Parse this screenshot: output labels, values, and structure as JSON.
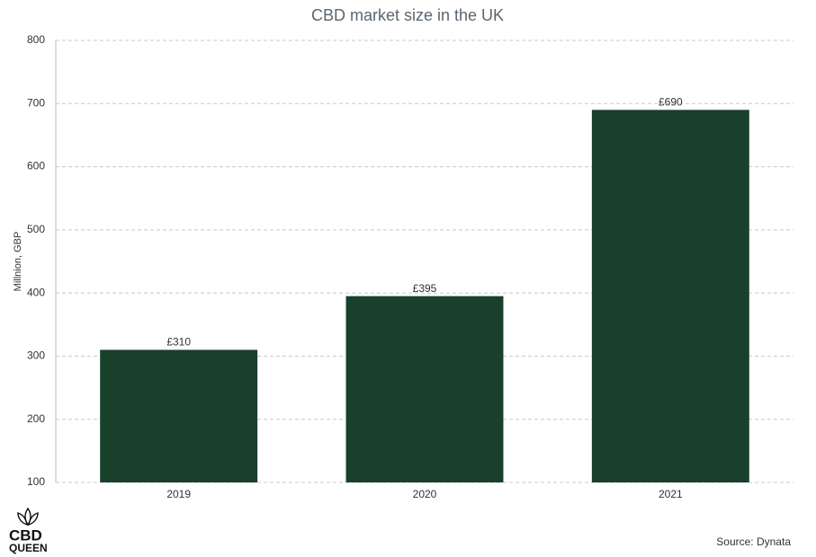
{
  "chart_data": {
    "type": "bar",
    "title": "CBD market size in the UK",
    "y_label": "Millnion, GBP",
    "categories": [
      "2019",
      "2020",
      "2021"
    ],
    "values": [
      310,
      395,
      690
    ],
    "value_labels": [
      "£310",
      "£395",
      "£690"
    ],
    "color": "#19402a",
    "ylim": [
      100,
      800
    ],
    "yticks": [
      100,
      200,
      300,
      400,
      500,
      600,
      700,
      800
    ],
    "grid": true,
    "source": "Source: Dynata"
  },
  "logo": {
    "line1": "CBD",
    "line2": "QUEEN"
  }
}
